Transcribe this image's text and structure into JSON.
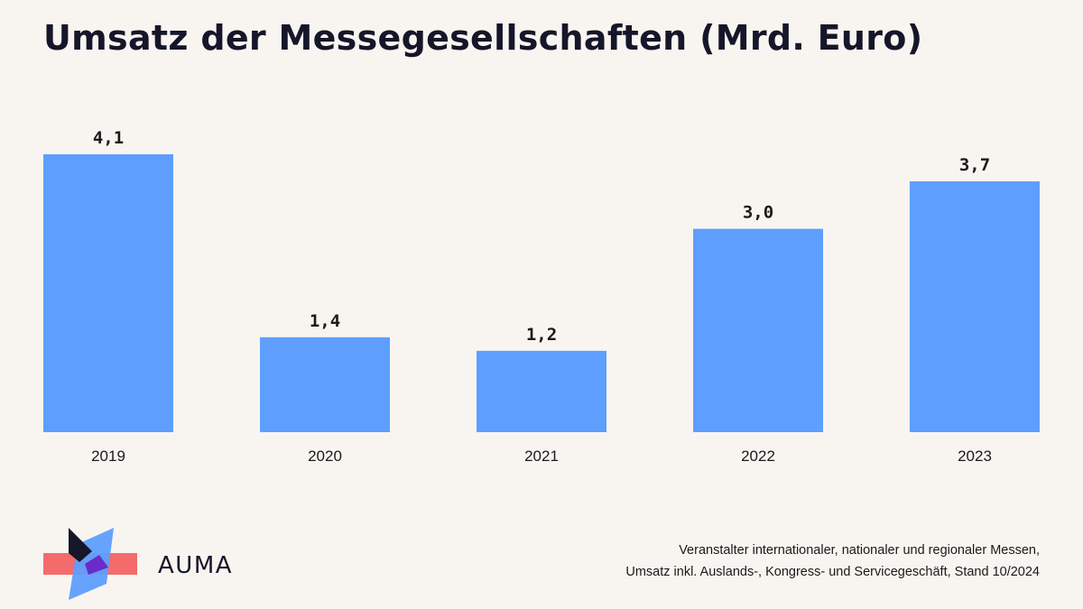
{
  "title": "Umsatz der Messegesellschaften (Mrd. Euro)",
  "brand": "AUMA",
  "footnote": {
    "line1": "Veranstalter internationaler, nationaler und regionaler Messen,",
    "line2": "Umsatz inkl. Auslands-, Kongress- und Servicegeschäft, Stand 10/2024"
  },
  "colors": {
    "bar": "#5e9eff",
    "background": "#f8f5f1",
    "logo_coral": "#f46b6b",
    "logo_blue": "#5e9eff",
    "logo_purple": "#6a2cc9",
    "logo_dark": "#16162a"
  },
  "chart_data": {
    "type": "bar",
    "categories": [
      "2019",
      "2020",
      "2021",
      "2022",
      "2023"
    ],
    "values": [
      4.1,
      1.4,
      1.2,
      3.0,
      3.7
    ],
    "value_labels": [
      "4,1",
      "1,4",
      "1,2",
      "3,0",
      "3,7"
    ],
    "title": "Umsatz der Messegesellschaften (Mrd. Euro)",
    "ylim": [
      0,
      4.1
    ],
    "grid": false,
    "legend": "none"
  }
}
